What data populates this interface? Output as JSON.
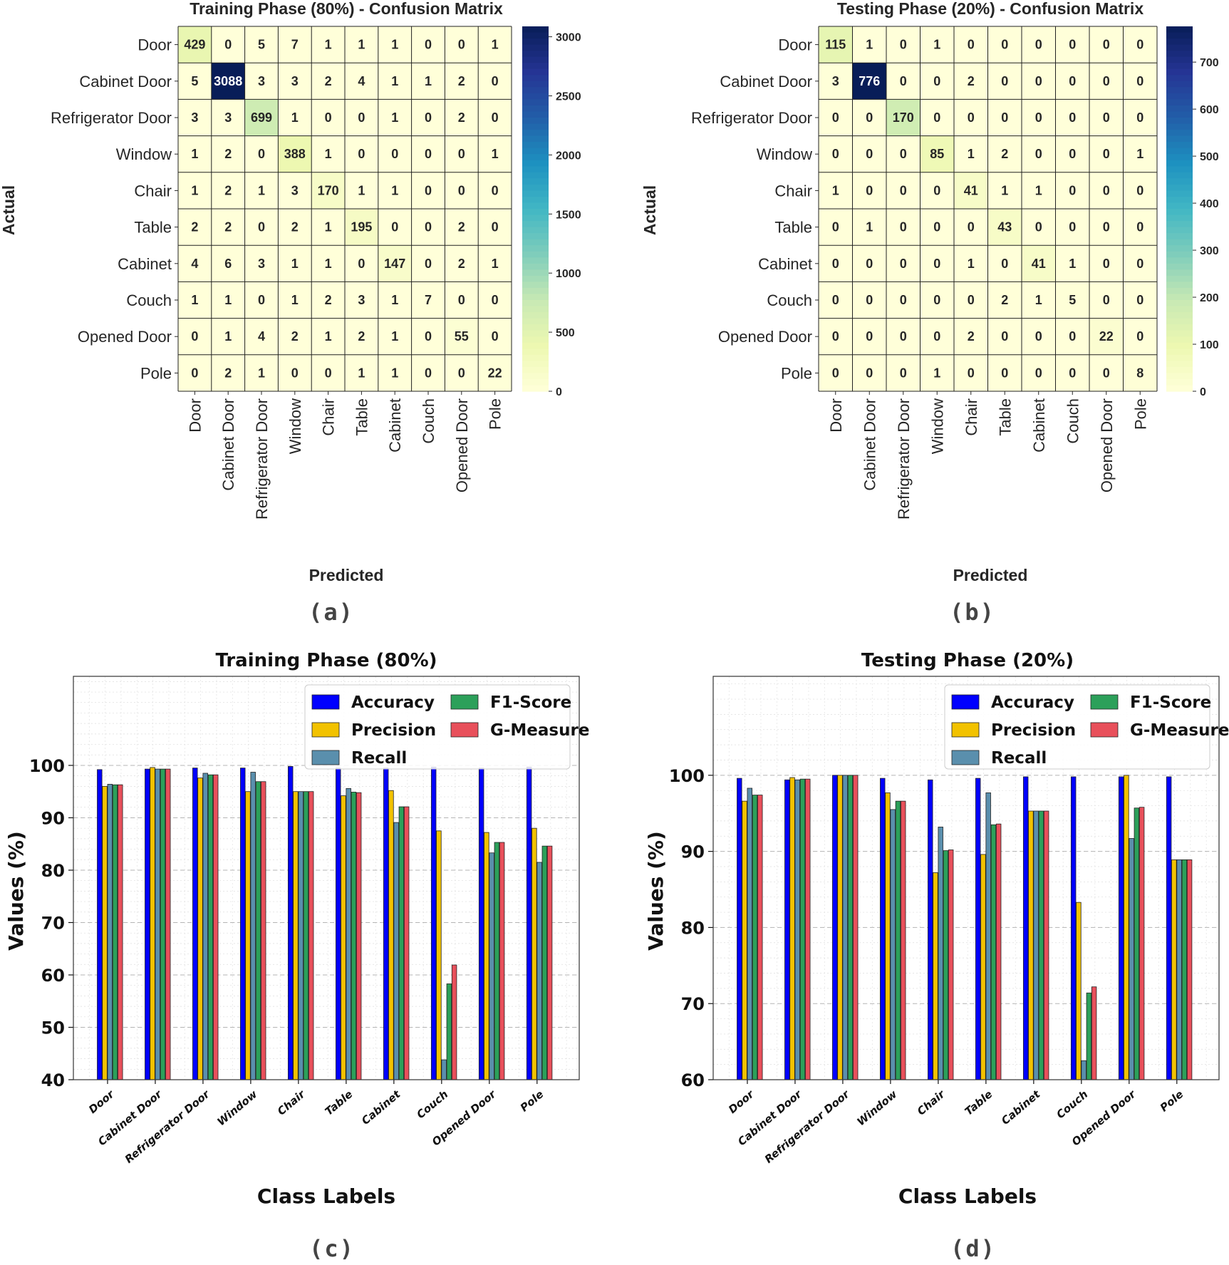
{
  "colors": {
    "accuracy": "#0000ff",
    "precision": "#f2c200",
    "recall": "#5a8fad",
    "f1": "#2ca05a",
    "gmeasure": "#e8505b"
  },
  "chart_data": [
    {
      "id": "cm_train",
      "type": "heatmap",
      "title": "Training Phase (80%) - Confusion Matrix",
      "xlabel": "Predicted",
      "ylabel": "Actual",
      "labels": [
        "Door",
        "Cabinet Door",
        "Refrigerator Door",
        "Window",
        "Chair",
        "Table",
        "Cabinet",
        "Couch",
        "Opened Door",
        "Pole"
      ],
      "matrix": [
        [
          429,
          0,
          5,
          7,
          1,
          1,
          1,
          0,
          0,
          1
        ],
        [
          5,
          3088,
          3,
          3,
          2,
          4,
          1,
          1,
          2,
          0
        ],
        [
          3,
          3,
          699,
          1,
          0,
          0,
          1,
          0,
          2,
          0
        ],
        [
          1,
          2,
          0,
          388,
          1,
          0,
          0,
          0,
          0,
          1
        ],
        [
          1,
          2,
          1,
          3,
          170,
          1,
          1,
          0,
          0,
          0
        ],
        [
          2,
          2,
          0,
          2,
          1,
          195,
          0,
          0,
          2,
          0
        ],
        [
          4,
          6,
          3,
          1,
          1,
          0,
          147,
          0,
          2,
          1
        ],
        [
          1,
          1,
          0,
          1,
          2,
          3,
          1,
          7,
          0,
          0
        ],
        [
          0,
          1,
          4,
          2,
          1,
          2,
          1,
          0,
          55,
          0
        ],
        [
          0,
          2,
          1,
          0,
          0,
          1,
          1,
          0,
          0,
          22
        ]
      ],
      "vmax": 3088,
      "colorbar_ticks": [
        "0",
        "500",
        "1000",
        "1500",
        "2000",
        "2500",
        "3000"
      ],
      "colorbar_values": [
        0,
        500,
        1000,
        1500,
        2000,
        2500,
        3000
      ],
      "caption": "(a)"
    },
    {
      "id": "cm_test",
      "type": "heatmap",
      "title": "Testing Phase (20%) - Confusion Matrix",
      "xlabel": "Predicted",
      "ylabel": "Actual",
      "labels": [
        "Door",
        "Cabinet Door",
        "Refrigerator Door",
        "Window",
        "Chair",
        "Table",
        "Cabinet",
        "Couch",
        "Opened Door",
        "Pole"
      ],
      "matrix": [
        [
          115,
          1,
          0,
          1,
          0,
          0,
          0,
          0,
          0,
          0
        ],
        [
          3,
          776,
          0,
          0,
          2,
          0,
          0,
          0,
          0,
          0
        ],
        [
          0,
          0,
          170,
          0,
          0,
          0,
          0,
          0,
          0,
          0
        ],
        [
          0,
          0,
          0,
          85,
          1,
          2,
          0,
          0,
          0,
          1
        ],
        [
          1,
          0,
          0,
          0,
          41,
          1,
          1,
          0,
          0,
          0
        ],
        [
          0,
          1,
          0,
          0,
          0,
          43,
          0,
          0,
          0,
          0
        ],
        [
          0,
          0,
          0,
          0,
          1,
          0,
          41,
          1,
          0,
          0
        ],
        [
          0,
          0,
          0,
          0,
          0,
          2,
          1,
          5,
          0,
          0
        ],
        [
          0,
          0,
          0,
          0,
          2,
          0,
          0,
          0,
          22,
          0
        ],
        [
          0,
          0,
          0,
          1,
          0,
          0,
          0,
          0,
          0,
          8
        ]
      ],
      "vmax": 776,
      "colorbar_ticks": [
        "0",
        "100",
        "200",
        "300",
        "400",
        "500",
        "600",
        "700"
      ],
      "colorbar_values": [
        0,
        100,
        200,
        300,
        400,
        500,
        600,
        700
      ],
      "caption": "(b)"
    },
    {
      "id": "bar_train",
      "type": "bar",
      "title": "Training Phase (80%)",
      "xlabel": "Class Labels",
      "ylabel": "Values (%)",
      "ylim": [
        40,
        117
      ],
      "yticks": [
        40,
        50,
        60,
        70,
        80,
        90,
        100
      ],
      "categories": [
        "Door",
        "Cabinet Door",
        "Refrigerator Door",
        "Window",
        "Chair",
        "Table",
        "Cabinet",
        "Couch",
        "Opened Door",
        "Pole"
      ],
      "series": [
        {
          "name": "Accuracy",
          "key": "accuracy",
          "values": [
            99.2,
            99.3,
            99.5,
            99.5,
            99.8,
            99.5,
            99.5,
            99.7,
            99.5,
            99.7
          ]
        },
        {
          "name": "Precision",
          "key": "precision",
          "values": [
            96.0,
            99.6,
            97.6,
            95.0,
            95.0,
            94.2,
            95.2,
            87.5,
            87.2,
            88.0
          ]
        },
        {
          "name": "Recall",
          "key": "recall",
          "values": [
            96.4,
            99.3,
            98.5,
            98.7,
            95.0,
            95.6,
            89.1,
            43.8,
            83.3,
            81.5
          ]
        },
        {
          "name": "F1-Score",
          "key": "f1",
          "values": [
            96.3,
            99.3,
            98.2,
            96.9,
            95.0,
            94.9,
            92.1,
            58.3,
            85.3,
            84.6
          ]
        },
        {
          "name": "G-Measure",
          "key": "gmeasure",
          "values": [
            96.3,
            99.3,
            98.2,
            96.9,
            95.0,
            94.8,
            92.1,
            61.9,
            85.3,
            84.6
          ]
        }
      ],
      "legend_position": "top-right",
      "caption": "(c)"
    },
    {
      "id": "bar_test",
      "type": "bar",
      "title": "Testing Phase (20%)",
      "xlabel": "Class Labels",
      "ylabel": "Values (%)",
      "ylim": [
        60,
        113
      ],
      "yticks": [
        60,
        70,
        80,
        90,
        100
      ],
      "categories": [
        "Door",
        "Cabinet Door",
        "Refrigerator Door",
        "Window",
        "Chair",
        "Table",
        "Cabinet",
        "Couch",
        "Opened Door",
        "Pole"
      ],
      "series": [
        {
          "name": "Accuracy",
          "key": "accuracy",
          "values": [
            99.6,
            99.4,
            100,
            99.6,
            99.4,
            99.6,
            99.8,
            99.8,
            99.8,
            99.8
          ]
        },
        {
          "name": "Precision",
          "key": "precision",
          "values": [
            96.6,
            99.7,
            100,
            97.7,
            87.2,
            89.6,
            95.3,
            83.3,
            100,
            88.9
          ]
        },
        {
          "name": "Recall",
          "key": "recall",
          "values": [
            98.3,
            99.4,
            100,
            95.5,
            93.2,
            97.7,
            95.3,
            62.5,
            91.7,
            88.9
          ]
        },
        {
          "name": "F1-Score",
          "key": "f1",
          "values": [
            97.4,
            99.5,
            100,
            96.6,
            90.1,
            93.5,
            95.3,
            71.4,
            95.7,
            88.9
          ]
        },
        {
          "name": "G-Measure",
          "key": "gmeasure",
          "values": [
            97.4,
            99.5,
            100,
            96.6,
            90.2,
            93.6,
            95.3,
            72.2,
            95.8,
            88.9
          ]
        }
      ],
      "legend_position": "top-right",
      "caption": "(d)"
    }
  ]
}
